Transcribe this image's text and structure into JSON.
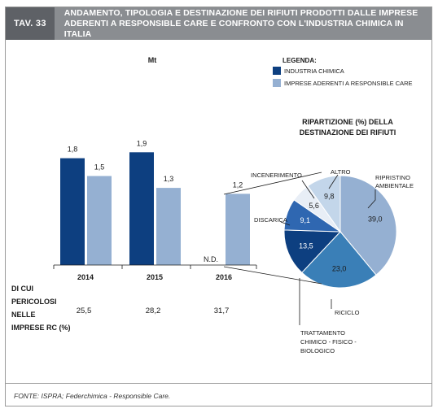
{
  "header": {
    "tag": "TAV. 33",
    "title_line1": "ANDAMENTO, TIPOLOGIA E DESTINAZIONE DEI RIFIUTI PRODOTTI DALLE IMPRESE",
    "title_line2": "ADERENTI A RESPONSIBLE CARE E CONFRONTO CON L'INDUSTRIA CHIMICA IN ITALIA"
  },
  "legend": {
    "title": "LEGENDA:",
    "items": [
      {
        "label": "INDUSTRIA CHIMICA",
        "color": "#0d3f80"
      },
      {
        "label": "IMPRESE ADERENTI A RESPONSIBLE CARE",
        "color": "#95b0d2"
      }
    ]
  },
  "chart_data": [
    {
      "type": "bar",
      "unit": "Mt",
      "categories": [
        "2014",
        "2015",
        "2016"
      ],
      "series": [
        {
          "name": "INDUSTRIA CHIMICA",
          "values": [
            1.8,
            1.9,
            null
          ],
          "labels": [
            "1,8",
            "1,9",
            "N.D."
          ],
          "color": "#0d3f80"
        },
        {
          "name": "IMPRESE ADERENTI A RESPONSIBLE CARE",
          "values": [
            1.5,
            1.3,
            1.2
          ],
          "labels": [
            "1,5",
            "1,3",
            "1,2"
          ],
          "color": "#95b0d2"
        }
      ],
      "ylim": [
        0,
        2.0
      ],
      "table": {
        "row_label": [
          "DI CUI",
          "PERICOLOSI",
          "NELLE",
          "IMPRESE RC (%)"
        ],
        "values": [
          "25,5",
          "28,2",
          "31,7"
        ]
      }
    },
    {
      "type": "pie",
      "title_line1": "RIPARTIZIONE (%) DELLA",
      "title_line2": "DESTINAZIONE DEI RIFIUTI",
      "slices": [
        {
          "label": "RIPRISTINO AMBIENTALE",
          "value": 39.0,
          "text": "39,0",
          "color": "#95b0d2"
        },
        {
          "label": "RICICLO",
          "value": 23.0,
          "text": "23,0",
          "color": "#3a7fb7"
        },
        {
          "label": "TRATTAMENTO CHIMICO - FISICO - BIOLOGICO",
          "value": 13.5,
          "text": "13,5",
          "color": "#0d3f80"
        },
        {
          "label": "DISCARICA",
          "value": 9.1,
          "text": "9,1",
          "color": "#2f67b1"
        },
        {
          "label": "INCENERIMENTO",
          "value": 5.6,
          "text": "5,6",
          "color": "#e8eef6"
        },
        {
          "label": "ALTRO",
          "value": 9.8,
          "text": "9,8",
          "color": "#c3d6ea"
        }
      ],
      "callouts": {
        "ripristino_1": "RIPRISTINO",
        "ripristino_2": "AMBIENTALE",
        "riciclo": "RICICLO",
        "tratt_1": "TRATTAMENTO",
        "tratt_2": "CHIMICO - FISICO -",
        "tratt_3": "BIOLOGICO",
        "discarica": "DISCARICA",
        "incenerimento": "INCENERIMENTO",
        "altro": "ALTRO"
      }
    }
  ],
  "source": "FONTE: ISPRA; Federchimica - Responsible Care."
}
